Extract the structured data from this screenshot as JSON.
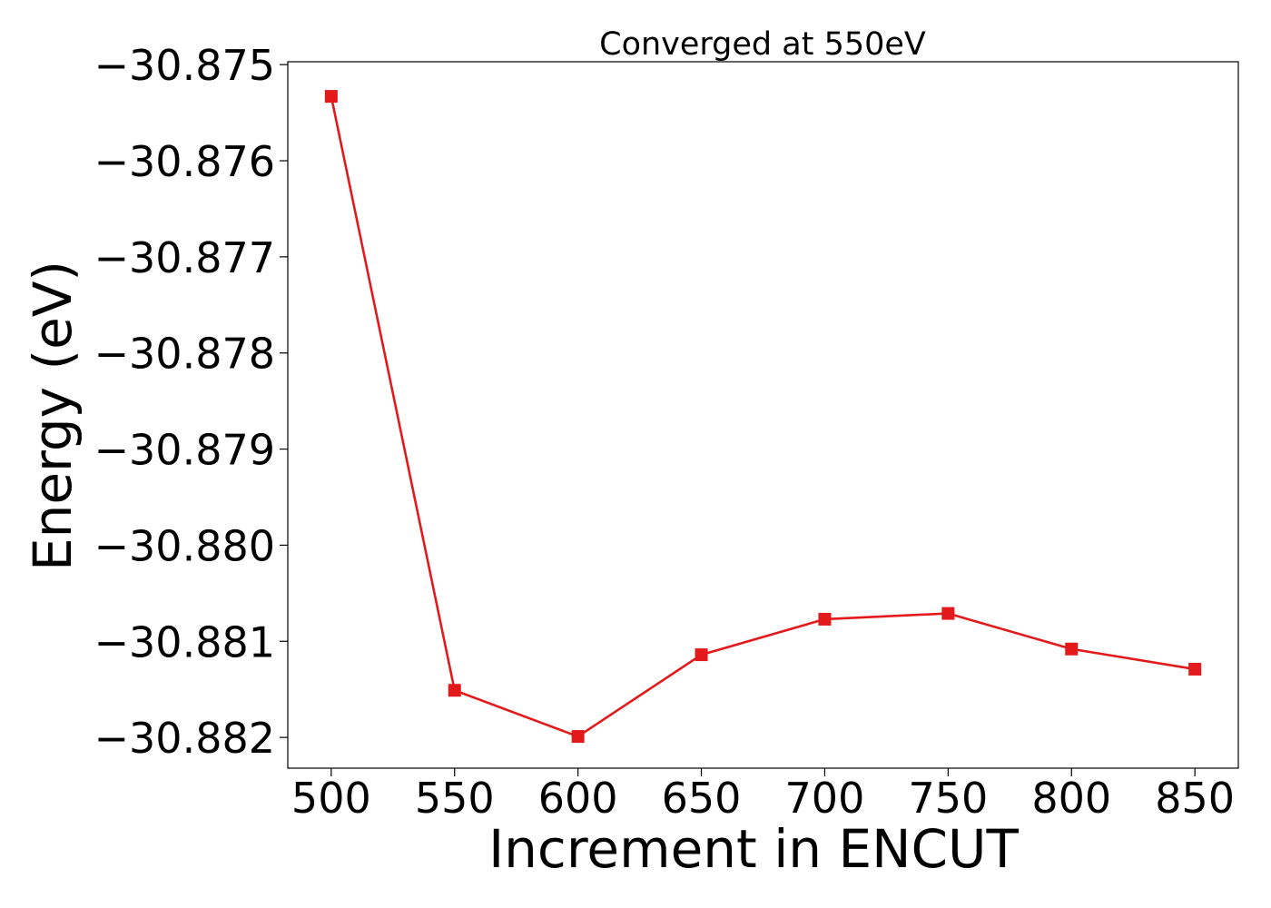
{
  "chart_data": {
    "type": "line",
    "title": "Converged at 550eV",
    "xlabel": "Increment in ENCUT",
    "ylabel": "Energy (eV)",
    "x": [
      500,
      550,
      600,
      650,
      700,
      750,
      800,
      850
    ],
    "x_tick_labels": [
      "500",
      "550",
      "600",
      "650",
      "700",
      "750",
      "800",
      "850"
    ],
    "y_tick_values": [
      -30.875,
      -30.876,
      -30.877,
      -30.878,
      -30.879,
      -30.88,
      -30.881,
      -30.882
    ],
    "y_tick_labels": [
      "−30.875",
      "−30.876",
      "−30.877",
      "−30.878",
      "−30.879",
      "−30.880",
      "−30.881",
      "−30.882"
    ],
    "xlim": [
      482.4,
      867.6
    ],
    "ylim": [
      -30.88232,
      -30.87497
    ],
    "series": [
      {
        "values": [
          -30.87533,
          -30.88151,
          -30.88199,
          -30.88114,
          -30.88077,
          -30.88071,
          -30.88108,
          -30.88129
        ],
        "color": "#e31a1c",
        "marker": "square"
      }
    ],
    "grid": false,
    "legend": "none"
  }
}
